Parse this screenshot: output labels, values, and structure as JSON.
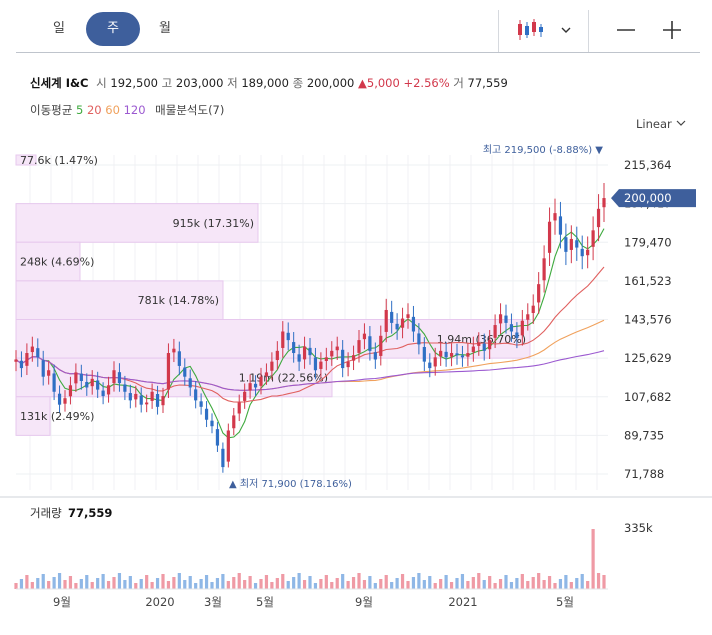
{
  "tabs": [
    {
      "label": "일",
      "active": false
    },
    {
      "label": "주",
      "active": true
    },
    {
      "label": "월",
      "active": false
    }
  ],
  "toolbar": {
    "chart_type_icon": "candlestick-icon",
    "dropdown_icon": "chevron-down-icon",
    "zoom_out": "−",
    "zoom_in": "+"
  },
  "quote": {
    "name": "신세계 I&C",
    "open_label": "시",
    "open": "192,500",
    "high_label": "고",
    "high": "203,000",
    "low_label": "저",
    "low": "189,000",
    "close_label": "종",
    "close": "200,000",
    "change": "▲5,000",
    "change_pct": "+2.56%",
    "volume_label": "거",
    "volume": "77,559"
  },
  "ma_legend": {
    "label": "이동평균",
    "p5": "5",
    "p20": "20",
    "p60": "60",
    "p120": "120",
    "profile_label": "매물분석도(7)"
  },
  "scale_label": "Linear",
  "colors": {
    "up": "#d2384b",
    "down": "#2f6fc4",
    "ma5": "#3faa3f",
    "ma20": "#e0605f",
    "ma60": "#f0a15c",
    "ma120": "#9b59d0",
    "profile": "#f6e6f8",
    "price_tag": "#3e5f9c"
  },
  "chart_data": {
    "type": "candlestick",
    "y_ticks": [
      "215,364",
      "197,417",
      "179,470",
      "161,523",
      "143,576",
      "125,629",
      "107,682",
      "89,735",
      "71,788"
    ],
    "ylim": [
      71788,
      215364
    ],
    "x_ticks": [
      "9월",
      "2020",
      "3월",
      "5월",
      "9월",
      "2021",
      "5월"
    ],
    "current_price_label": "200,000",
    "high_annotation": "최고 219,500 (-8.88%)",
    "low_annotation": "최저 71,900 (178.16%)",
    "ma_series": [
      {
        "name": "5",
        "color": "#3faa3f"
      },
      {
        "name": "20",
        "color": "#e0605f"
      },
      {
        "name": "60",
        "color": "#f0a15c"
      },
      {
        "name": "120",
        "color": "#9b59d0"
      }
    ],
    "price_profile": [
      {
        "label": "77.6k (1.47%)",
        "low": 215364,
        "high": 237000
      },
      {
        "label": "915k (17.31%)",
        "low": 179470,
        "high": 197417
      },
      {
        "label": "248k (4.69%)",
        "low": 161523,
        "high": 179470
      },
      {
        "label": "781k (14.78%)",
        "low": 143576,
        "high": 161523
      },
      {
        "label": "1.94m (36.70%)",
        "low": 125629,
        "high": 143576
      },
      {
        "label": "1.19m (22.56%)",
        "low": 107682,
        "high": 125629
      },
      {
        "label": "131k (2.49%)",
        "low": 89735,
        "high": 107682
      }
    ],
    "closes": [
      125000,
      121000,
      128000,
      131000,
      126000,
      117000,
      120000,
      110000,
      104000,
      107000,
      113000,
      119000,
      115000,
      112000,
      116000,
      111000,
      108000,
      113000,
      120000,
      114000,
      110000,
      106000,
      109000,
      104000,
      105000,
      110000,
      103000,
      108000,
      128000,
      130000,
      122000,
      117000,
      112000,
      106000,
      103000,
      97000,
      94000,
      85000,
      75000,
      92000,
      99000,
      105000,
      110000,
      114000,
      112000,
      117000,
      119000,
      124000,
      129000,
      138000,
      134000,
      128000,
      124000,
      131000,
      127000,
      120000,
      124000,
      126000,
      129000,
      131000,
      121000,
      124000,
      127000,
      134000,
      137000,
      129000,
      125000,
      136000,
      148000,
      142000,
      139000,
      144000,
      146000,
      138000,
      132000,
      124000,
      121000,
      126000,
      129000,
      126000,
      128000,
      127000,
      126000,
      128000,
      131000,
      133000,
      129000,
      134000,
      141000,
      146000,
      142000,
      138000,
      135000,
      143000,
      146000,
      150000,
      160000,
      172000,
      189000,
      193000,
      183000,
      175000,
      181000,
      177000,
      173000,
      176000,
      185000,
      195000,
      200000
    ],
    "volume": {
      "label": "거래량",
      "value": "77,559",
      "tick": "335k"
    }
  }
}
